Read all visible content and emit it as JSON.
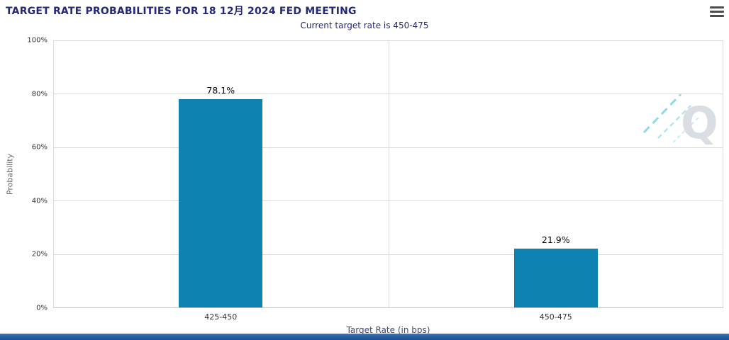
{
  "header": {
    "title": "TARGET RATE PROBABILITIES FOR 18 12月 2024 FED MEETING",
    "menu_icon": "hamburger-menu-icon"
  },
  "subtitle": "Current target rate is 450-475",
  "chart_data": {
    "type": "bar",
    "title": "TARGET RATE PROBABILITIES FOR 18 12月 2024 FED MEETING",
    "subtitle": "Current target rate is 450-475",
    "categories": [
      "425-450",
      "450-475"
    ],
    "values": [
      78.1,
      21.9
    ],
    "value_labels": [
      "78.1%",
      "21.9%"
    ],
    "xlabel": "Target Rate (in bps)",
    "ylabel": "Probability",
    "ylim": [
      0,
      100
    ],
    "yticks": [
      0,
      20,
      40,
      60,
      80,
      100
    ],
    "ytick_labels": [
      "0%",
      "20%",
      "40%",
      "60%",
      "80%",
      "100%"
    ],
    "grid": true,
    "legend": "none",
    "bar_color": "#0e82b1"
  },
  "watermark": {
    "letter": "Q",
    "letter_color": "#d7dbdf",
    "dash_color": "#7fd8e8"
  },
  "colors": {
    "title": "#23287d",
    "bar": "#0e82b1",
    "footer": "#255a9d"
  }
}
